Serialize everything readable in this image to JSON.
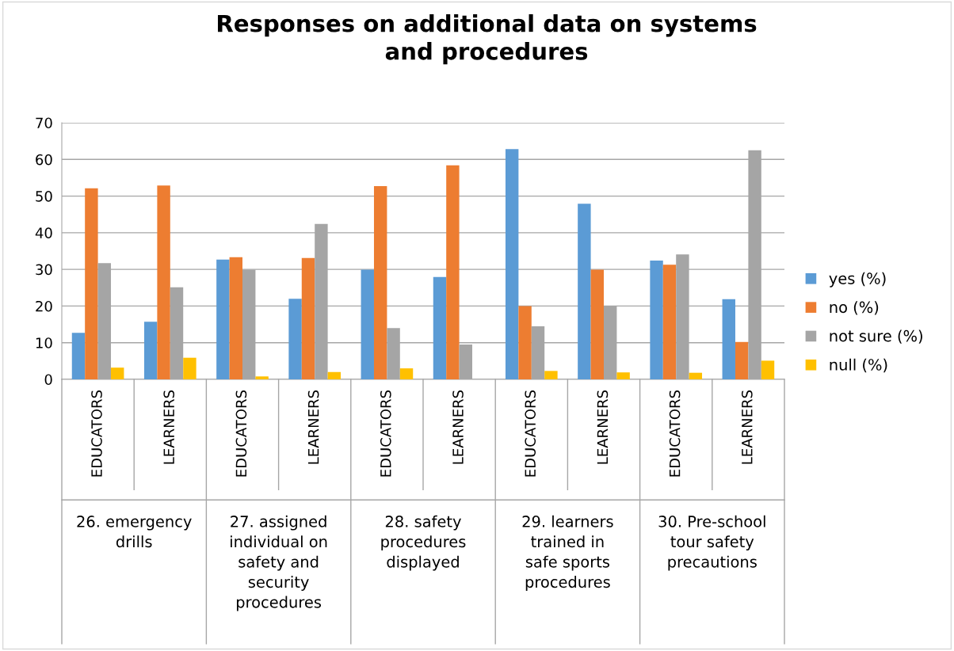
{
  "chart_data": {
    "type": "bar",
    "title": "Responses on additional data on systems and procedures",
    "categories": [
      "EDUCATORS",
      "LEARNERS",
      "EDUCATORS",
      "LEARNERS",
      "EDUCATORS",
      "LEARNERS",
      "EDUCATORS",
      "LEARNERS",
      "EDUCATORS",
      "LEARNERS"
    ],
    "annotations": [
      "26. emergency drills",
      "27. assigned individual on safety and security procedures",
      "28. safety procedures displayed",
      "29. learners trained in safe sports procedures",
      "30. Pre-school tour safety precautions"
    ],
    "series": [
      {
        "name": "yes (%)",
        "color": "#5b9bd5",
        "values": [
          12.7,
          15.7,
          32.7,
          22.0,
          29.9,
          27.9,
          62.8,
          47.9,
          32.4,
          21.9
        ]
      },
      {
        "name": "no (%)",
        "color": "#ed7d31",
        "values": [
          52.1,
          52.9,
          33.3,
          33.1,
          52.7,
          58.4,
          20.0,
          29.9,
          31.3,
          10.2
        ]
      },
      {
        "name": "not sure (%)",
        "color": "#a5a5a5",
        "values": [
          31.7,
          25.1,
          29.9,
          42.4,
          14.0,
          9.5,
          14.5,
          20.0,
          34.1,
          62.5
        ]
      },
      {
        "name": "null (%)",
        "color": "#ffc000",
        "values": [
          3.2,
          5.9,
          0.8,
          2.0,
          3.0,
          0,
          2.3,
          1.9,
          1.8,
          5.1
        ]
      }
    ],
    "ylim": [
      0,
      70
    ],
    "yticks": [
      0,
      10,
      20,
      30,
      40,
      50,
      60,
      70
    ],
    "grid": "y",
    "legend": "right"
  }
}
